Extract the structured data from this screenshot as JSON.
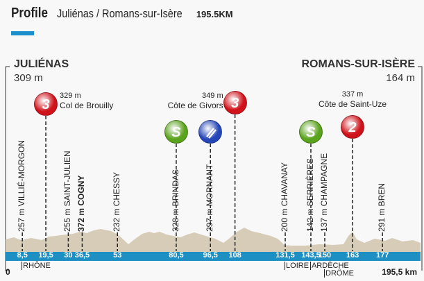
{
  "header": {
    "title": "Profile",
    "route": "Juliénas / Romans-sur-Isère",
    "distance": "195.5KM",
    "accent": "#1a8fc9"
  },
  "start": {
    "name": "JULIÉNAS",
    "alt": "309 m"
  },
  "finish": {
    "name": "ROMANS-SUR-ISÈRE",
    "alt": "164 m"
  },
  "climbs": [
    {
      "km": 19.5,
      "cat": "3",
      "alt": "329 m",
      "name": "Col de Brouilly",
      "color": "#d0121b"
    },
    {
      "km": 108,
      "cat": "3",
      "alt": "349 m",
      "name": "Côte de Givors",
      "color": "#d0121b"
    },
    {
      "km": 163,
      "cat": "2",
      "alt": "337 m",
      "name": "Côte de Saint-Uze",
      "color": "#d0121b"
    }
  ],
  "sprints": [
    {
      "km": 80.5,
      "label": "S",
      "color": "#5aa31d"
    },
    {
      "km": 143.5,
      "label": "S",
      "color": "#5aa31d"
    }
  ],
  "feed": {
    "km": 96.5,
    "icon": "feed-zone-icon",
    "color": "#2446b8"
  },
  "places": [
    {
      "km": 8.5,
      "alt": "257 m",
      "name": "VILLIÉ-MORGON"
    },
    {
      "km": 30,
      "alt": "255 m",
      "name": "SAINT-JULIEN"
    },
    {
      "km": 36.5,
      "alt": "372 m",
      "name": "COGNY",
      "bold": true
    },
    {
      "km": 53,
      "alt": "232 m",
      "name": "CHESSY"
    },
    {
      "km": 80.5,
      "alt": "328 m",
      "name": "BRINDAS"
    },
    {
      "km": 96.5,
      "alt": "297 m",
      "name": "MORNANT"
    },
    {
      "km": 131.5,
      "alt": "200 m",
      "name": "CHAVANAY"
    },
    {
      "km": 143.5,
      "alt": "142 m",
      "name": "SERRIÈRES"
    },
    {
      "km": 150,
      "alt": "137 m",
      "name": "CHAMPAGNE"
    },
    {
      "km": 177,
      "alt": "291 m",
      "name": "BREN"
    }
  ],
  "km_labels": [
    "8,5",
    "19,5",
    "30",
    "36,5",
    "53",
    "80,5",
    "96,5",
    "108",
    "131,5",
    "143,5",
    "150",
    "163",
    "177"
  ],
  "km_values": [
    8.5,
    19.5,
    30,
    36.5,
    53,
    80.5,
    96.5,
    108,
    131.5,
    143.5,
    150,
    163,
    177
  ],
  "rivers": [
    {
      "km": 8.5,
      "name": "RHÔNE"
    },
    {
      "km": 131.5,
      "name": "LOIRE"
    },
    {
      "km": 143.5,
      "name": "ARDÈCHE"
    },
    {
      "km": 150,
      "name": "DRÔME",
      "low": true
    }
  ],
  "axis": {
    "start": "0",
    "end": "195,5 km"
  }
}
